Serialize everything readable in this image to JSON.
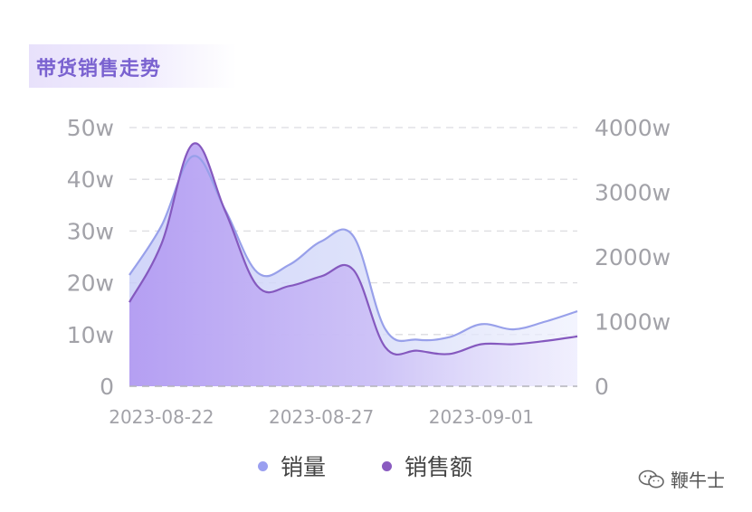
{
  "title": "带货销售走势",
  "watermark": {
    "text": "鞭牛士",
    "icon": "wechat-icon"
  },
  "legend": [
    {
      "label": "销量",
      "color": "#9a9ff0"
    },
    {
      "label": "销售额",
      "color": "#8a5bc0"
    }
  ],
  "colors": {
    "volume_line": "#98a0ea",
    "volume_fill": "#ccd1f7",
    "amount_line": "#8559bf",
    "amount_fill": "#b8a3f4",
    "grid": "#dcdce0",
    "tick_text": "#a2a2a8"
  },
  "chart_data": {
    "type": "area",
    "x_dates": [
      "2023-08-21",
      "2023-08-22",
      "2023-08-23",
      "2023-08-24",
      "2023-08-25",
      "2023-08-26",
      "2023-08-27",
      "2023-08-28",
      "2023-08-29",
      "2023-08-30",
      "2023-08-31",
      "2023-09-01",
      "2023-09-02",
      "2023-09-03",
      "2023-09-04"
    ],
    "xtick_labels": [
      "2023-08-22",
      "2023-08-27",
      "2023-09-01"
    ],
    "y_left_ticks": [
      "0",
      "10w",
      "20w",
      "30w",
      "40w",
      "50w"
    ],
    "y_right_ticks": [
      "0",
      "1000w",
      "2000w",
      "3000w",
      "4000w"
    ],
    "ylim_left": [
      0,
      50
    ],
    "ylim_right": [
      0,
      4000
    ],
    "grid": true,
    "series": [
      {
        "name": "销量",
        "axis": "left",
        "unit": "w",
        "values": [
          21.5,
          31,
          44.5,
          34,
          22,
          23.5,
          28,
          29,
          11,
          9,
          9.5,
          12,
          11,
          12.5,
          14.5
        ]
      },
      {
        "name": "销售额",
        "axis": "right",
        "unit": "w",
        "values": [
          1300,
          2200,
          3750,
          2700,
          1550,
          1550,
          1700,
          1800,
          600,
          550,
          500,
          650,
          650,
          700,
          770
        ]
      }
    ]
  }
}
